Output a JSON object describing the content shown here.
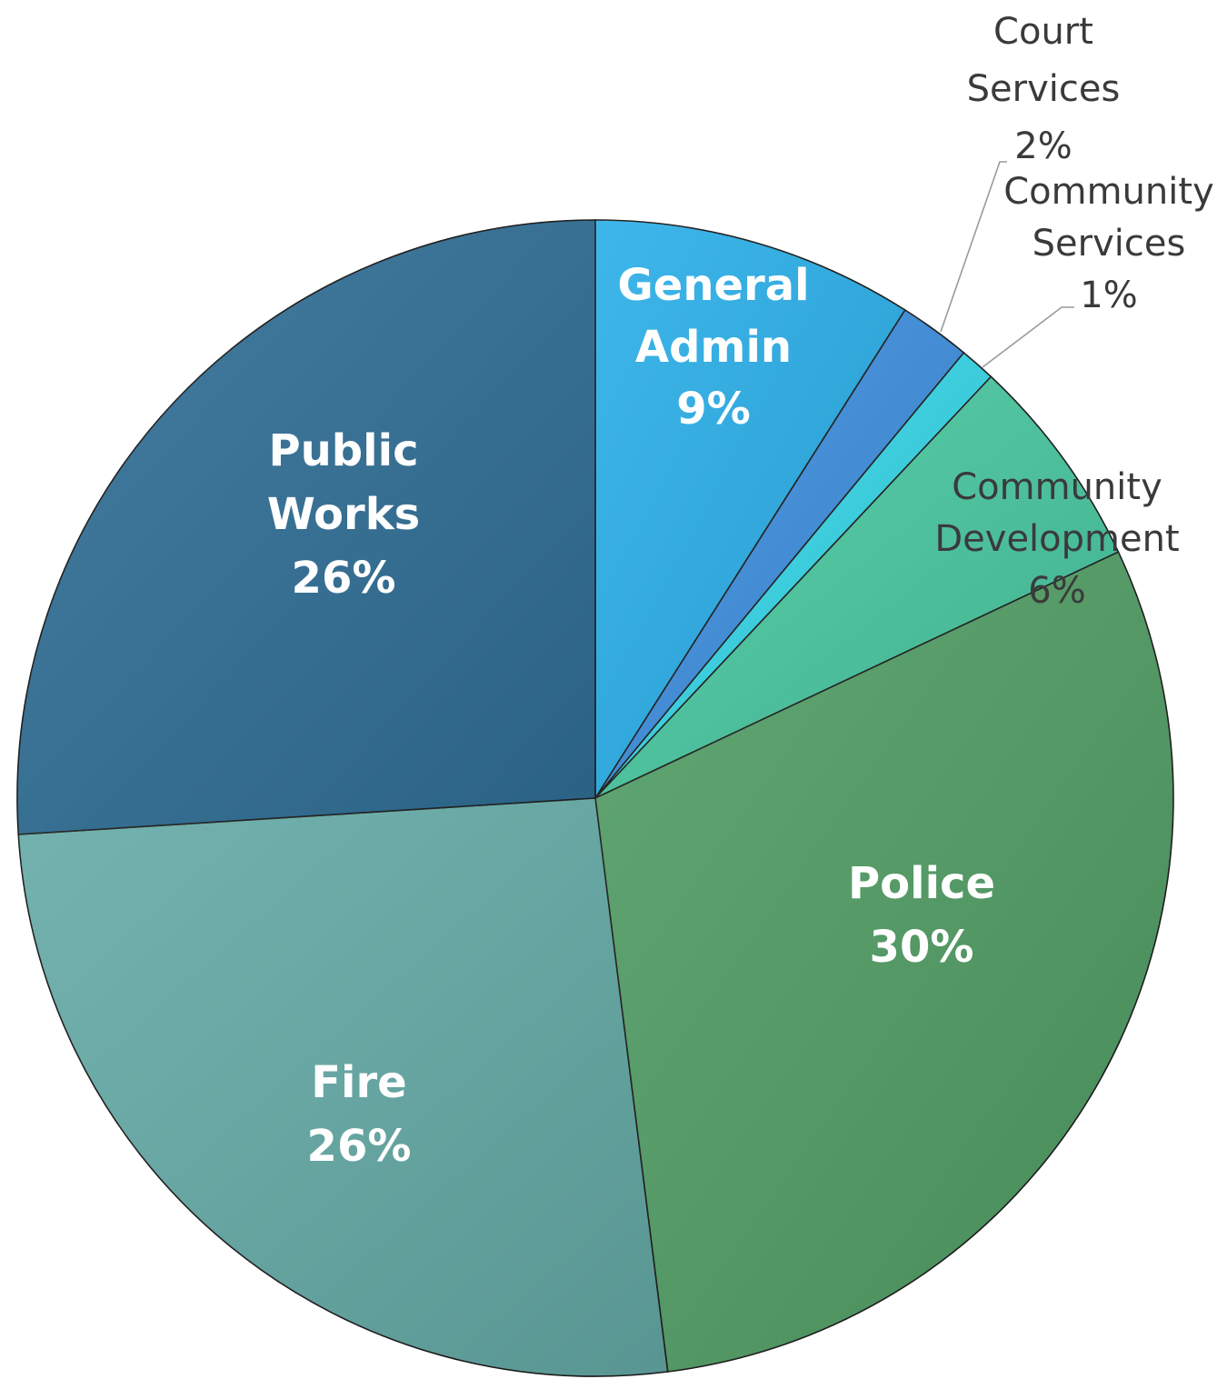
{
  "chart_data": {
    "type": "pie",
    "title": "",
    "slices": [
      {
        "category": "General Admin",
        "label_lines": [
          "General",
          "Admin",
          "9%"
        ],
        "value": 9,
        "color": "#29aee8",
        "label_style": "inside"
      },
      {
        "category": "Court Services",
        "label_lines": [
          "Court",
          "Services",
          "2%"
        ],
        "value": 2,
        "color": "#3d8ede",
        "label_style": "outside"
      },
      {
        "category": "Community Services",
        "label_lines": [
          "Community",
          "Services",
          "1%"
        ],
        "value": 1,
        "color": "#35d6e8",
        "label_style": "outside"
      },
      {
        "category": "Community Development",
        "label_lines": [
          "Community",
          "Development",
          "6%"
        ],
        "value": 6,
        "color": "#48c8a0",
        "label_style": "overlay"
      },
      {
        "category": "Police",
        "label_lines": [
          "Police",
          "30%"
        ],
        "value": 30,
        "color": "#4f9c63",
        "label_style": "inside"
      },
      {
        "category": "Fire",
        "label_lines": [
          "Fire",
          "26%"
        ],
        "value": 26,
        "color": "#64aaa6",
        "label_style": "inside"
      },
      {
        "category": "Public Works",
        "label_lines": [
          "Public",
          "Works",
          "26%"
        ],
        "value": 26,
        "color": "#2f6e96",
        "label_style": "inside"
      }
    ],
    "legend": "none"
  }
}
